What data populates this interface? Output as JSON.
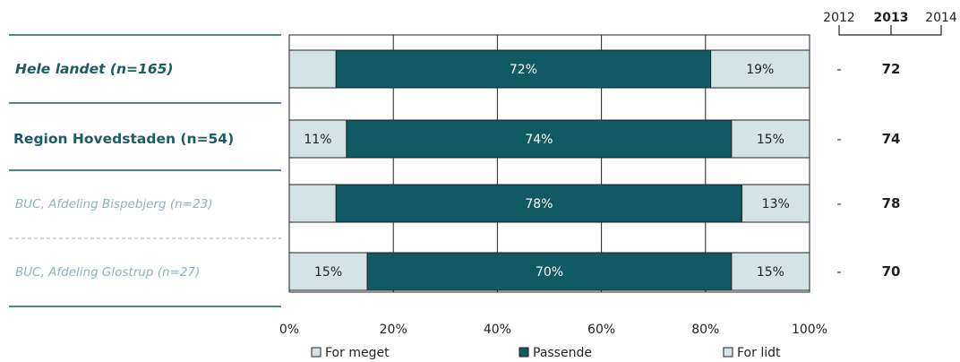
{
  "chart_data": {
    "type": "bar",
    "stacked": true,
    "orientation": "horizontal",
    "xlim": [
      0,
      100
    ],
    "x_ticks": [
      "0%",
      "20%",
      "40%",
      "60%",
      "80%",
      "100%"
    ],
    "grid": true,
    "legend_position": "bottom",
    "categories": [
      "Hele landet (n=165)",
      "Region Hovedstaden (n=54)",
      "BUC, Afdeling Bispebjerg (n=23)",
      "BUC, Afdeling Glostrup (n=27)"
    ],
    "series": [
      {
        "name": "For meget",
        "color": "#d3e3e6",
        "values": [
          9,
          11,
          9,
          15
        ],
        "labels": [
          "",
          "11%",
          "",
          "15%"
        ]
      },
      {
        "name": "Passende",
        "color": "#0f5a63",
        "values": [
          72,
          74,
          78,
          70
        ],
        "labels": [
          "72%",
          "74%",
          "78%",
          "70%"
        ]
      },
      {
        "name": "For lidt",
        "color": "#d3e3e6",
        "values": [
          19,
          15,
          13,
          15
        ],
        "labels": [
          "19%",
          "15%",
          "13%",
          "15%"
        ]
      }
    ],
    "year_columns": {
      "headers": [
        "2012",
        "2013",
        "2014"
      ],
      "current": "2013",
      "previous_values": [
        "-",
        "-",
        "-",
        "-"
      ],
      "current_values": [
        "72",
        "74",
        "78",
        "70"
      ]
    }
  },
  "colors": {
    "accent": "#1b5c66",
    "muted": "#8fb3bd",
    "dark_bar": "#0f5a63",
    "light_bar": "#d3e3e6"
  }
}
